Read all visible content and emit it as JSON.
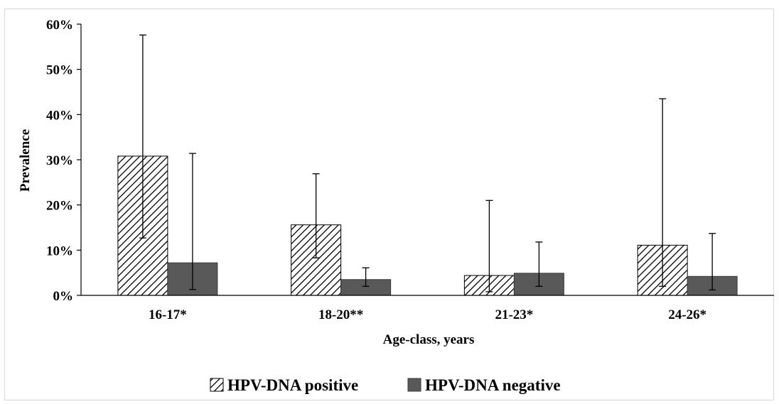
{
  "chart_data": {
    "type": "bar",
    "title": "",
    "xlabel": "Age-class, years",
    "ylabel": "Prevalence",
    "ylim": [
      0,
      60
    ],
    "yticks": [
      "0%",
      "10%",
      "20%",
      "30%",
      "40%",
      "50%",
      "60%"
    ],
    "categories": [
      "16-17*",
      "18-20**",
      "21-23*",
      "24-26*"
    ],
    "series": [
      {
        "name": "HPV-DNA positive",
        "pattern": "hatched",
        "values": [
          30.8,
          15.6,
          4.4,
          11.1
        ],
        "error_low": [
          12.7,
          8.3,
          0.8,
          2.0
        ],
        "error_high": [
          57.6,
          26.9,
          21.0,
          43.5
        ]
      },
      {
        "name": "HPV-DNA negative",
        "color": "#595959",
        "values": [
          7.2,
          3.5,
          4.9,
          4.2
        ],
        "error_low": [
          1.3,
          2.0,
          2.0,
          1.2
        ],
        "error_high": [
          31.4,
          6.1,
          11.8,
          13.7
        ]
      }
    ],
    "legend": "bottom",
    "grid": false
  }
}
